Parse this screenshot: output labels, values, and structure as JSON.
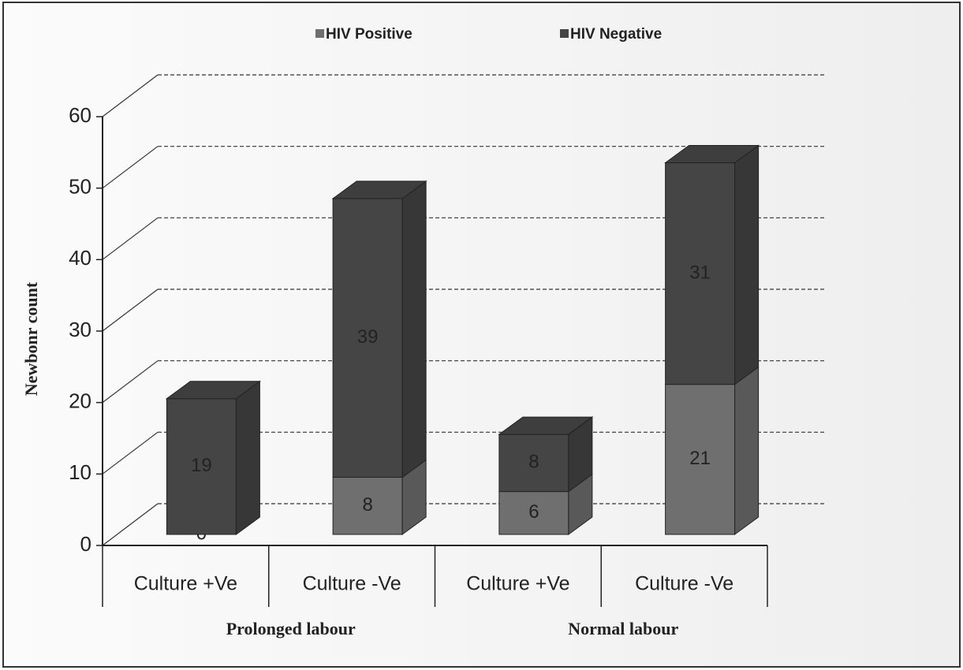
{
  "chart_data": {
    "type": "stacked_bar_3d",
    "ylabel": "Newbonr count",
    "categories": [
      "Culture +Ve",
      "Culture -Ve",
      "Culture +Ve",
      "Culture -Ve"
    ],
    "groups": [
      "Prolonged labour",
      "Normal labour"
    ],
    "series": [
      {
        "name": "HIV Positive",
        "color": "#6f6f6f",
        "values": [
          0,
          8,
          6,
          21
        ]
      },
      {
        "name": "HIV Negative",
        "color": "#454545",
        "values": [
          19,
          39,
          8,
          31
        ]
      }
    ],
    "ylim": [
      0,
      60
    ],
    "yticks": [
      0,
      10,
      20,
      30,
      40,
      50,
      60
    ],
    "grid": true
  }
}
